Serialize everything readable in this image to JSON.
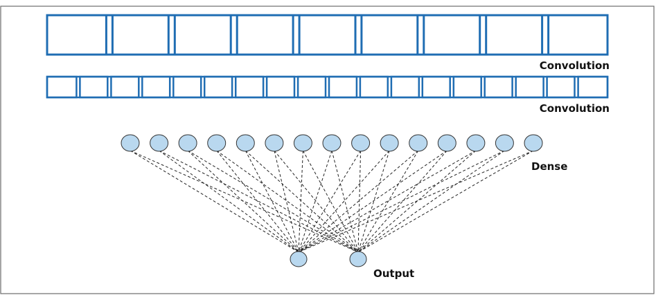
{
  "labels": {
    "conv1": "Convolution",
    "conv2": "Convolution",
    "dense": "Dense",
    "output": "Output"
  },
  "conv_layers": [
    {
      "name": "conv1",
      "cells": 9
    },
    {
      "name": "conv2",
      "cells": 18
    }
  ],
  "dense_nodes": 15,
  "output_nodes": 2,
  "colors": {
    "frame": "#6b6b6b",
    "conv_stroke": "#1f6db3",
    "node_fill": "#b9d8ef",
    "node_stroke": "#333333",
    "edge": "#222222"
  }
}
